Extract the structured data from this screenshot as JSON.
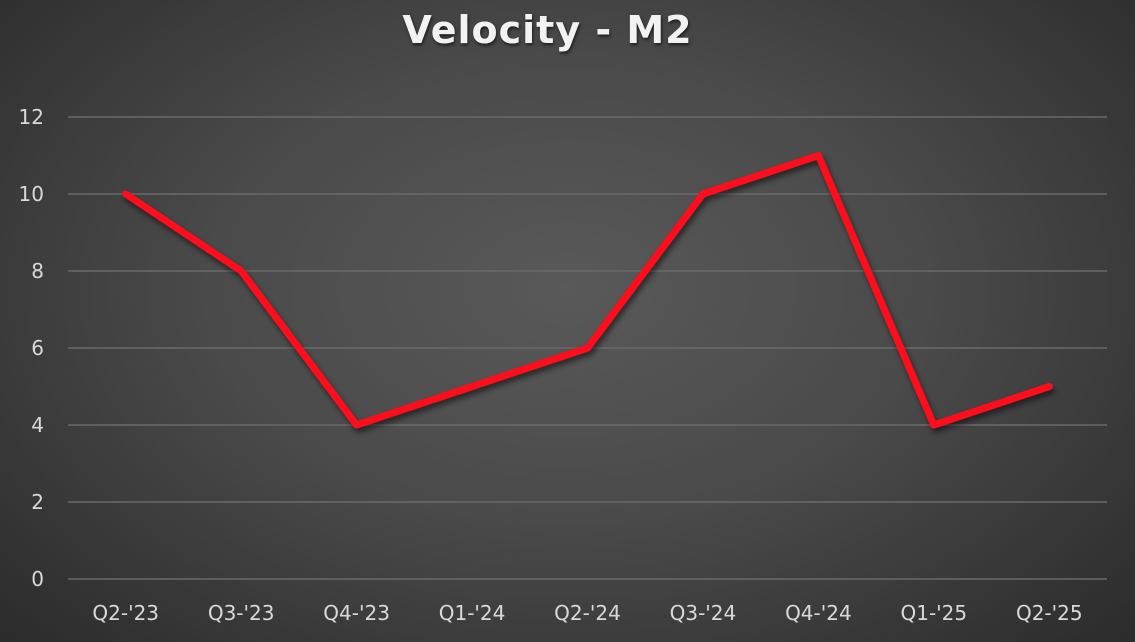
{
  "chart_data": {
    "type": "line",
    "title": "Velocity - M2",
    "xlabel": "",
    "ylabel": "",
    "categories": [
      "Q2-'23",
      "Q3-'23",
      "Q4-'23",
      "Q1-'24",
      "Q2-'24",
      "Q3-'24",
      "Q4-'24",
      "Q1-'25",
      "Q2-'25"
    ],
    "series": [
      {
        "name": "Velocity - M2",
        "values": [
          10,
          8,
          4,
          5,
          6,
          10,
          11,
          4,
          5
        ],
        "color": "#ff0a1a"
      }
    ],
    "ylim": [
      0,
      12
    ],
    "yticks": [
      0,
      2,
      4,
      6,
      8,
      10,
      12
    ],
    "grid": true,
    "legend": "none"
  },
  "colors": {
    "line": "#ff0a1a",
    "gridline": "#6a6a6a",
    "text": "#d9d9d9",
    "title": "#f2f2f2"
  }
}
